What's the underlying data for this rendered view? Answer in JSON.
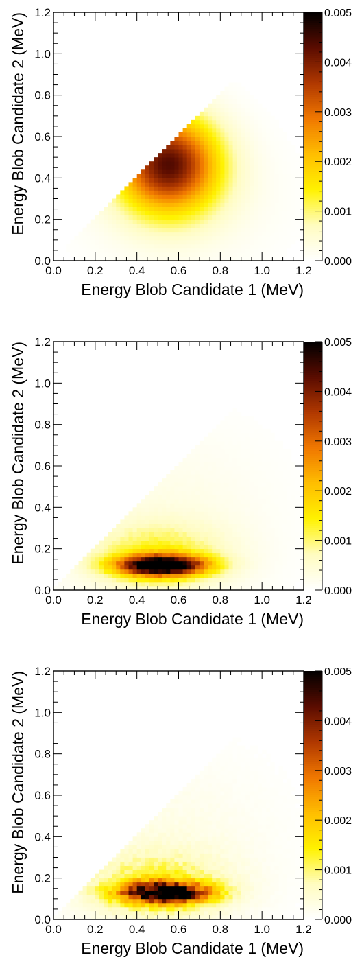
{
  "chart_data": [
    {
      "type": "heatmap",
      "xlabel": "Energy Blob Candidate 1 (MeV)",
      "ylabel": "Energy Blob Candidate 2 (MeV)",
      "xlim": [
        0.0,
        1.2
      ],
      "ylim": [
        0.0,
        1.2
      ],
      "x_ticks": [
        "0.0",
        "0.2",
        "0.4",
        "0.6",
        "0.8",
        "1.0",
        "1.2"
      ],
      "y_ticks": [
        "0.0",
        "0.2",
        "0.4",
        "0.6",
        "0.8",
        "1.0",
        "1.2"
      ],
      "colorbar": {
        "range": [
          0.0,
          0.005
        ],
        "ticks": [
          "0.000",
          "0.001",
          "0.002",
          "0.003",
          "0.004",
          "0.005"
        ]
      },
      "colormap": [
        "#ffffff",
        "#fffcc0",
        "#fff200",
        "#ffbe00",
        "#f07800",
        "#b03800",
        "#5a0c00",
        "#000000"
      ],
      "distribution": {
        "region": "y <= x",
        "peak": {
          "x": 0.55,
          "y": 0.47,
          "value": 0.0041
        },
        "peak_on_diagonal_edge": true,
        "noise": 0.0
      }
    },
    {
      "type": "heatmap",
      "xlabel": "Energy Blob Candidate 1 (MeV)",
      "ylabel": "Energy Blob Candidate 2 (MeV)",
      "xlim": [
        0.0,
        1.2
      ],
      "ylim": [
        0.0,
        1.2
      ],
      "x_ticks": [
        "0.0",
        "0.2",
        "0.4",
        "0.6",
        "0.8",
        "1.0",
        "1.2"
      ],
      "y_ticks": [
        "0.0",
        "0.2",
        "0.4",
        "0.6",
        "0.8",
        "1.0",
        "1.2"
      ],
      "colorbar": {
        "range": [
          0.0,
          0.005
        ],
        "ticks": [
          "0.000",
          "0.001",
          "0.002",
          "0.003",
          "0.004",
          "0.005"
        ]
      },
      "colormap": [
        "#ffffff",
        "#fffcc0",
        "#fff200",
        "#ffbe00",
        "#f07800",
        "#b03800",
        "#5a0c00",
        "#000000"
      ],
      "distribution": {
        "region": "y <= x",
        "peak": {
          "x": 0.52,
          "y": 0.12,
          "value": 0.005
        },
        "peak_on_diagonal_edge": false,
        "noise": 0.08
      }
    },
    {
      "type": "heatmap",
      "xlabel": "Energy Blob Candidate 1 (MeV)",
      "ylabel": "Energy Blob Candidate 2 (MeV)",
      "xlim": [
        0.0,
        1.2
      ],
      "ylim": [
        0.0,
        1.2
      ],
      "x_ticks": [
        "0.0",
        "0.2",
        "0.4",
        "0.6",
        "0.8",
        "1.0",
        "1.2"
      ],
      "y_ticks": [
        "0.0",
        "0.2",
        "0.4",
        "0.6",
        "0.8",
        "1.0",
        "1.2"
      ],
      "colorbar": {
        "range": [
          0.0,
          0.005
        ],
        "ticks": [
          "0.000",
          "0.001",
          "0.002",
          "0.003",
          "0.004",
          "0.005"
        ]
      },
      "colormap": [
        "#ffffff",
        "#fffcc0",
        "#fff200",
        "#ffbe00",
        "#f07800",
        "#b03800",
        "#5a0c00",
        "#000000"
      ],
      "distribution": {
        "region": "y <= x",
        "peak": {
          "x": 0.54,
          "y": 0.13,
          "value": 0.0048
        },
        "peak_on_diagonal_edge": false,
        "noise": 0.22
      }
    }
  ]
}
